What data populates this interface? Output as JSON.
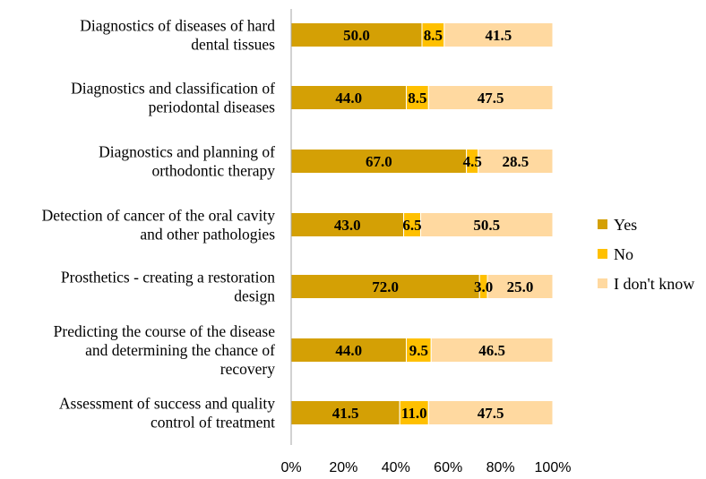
{
  "chart_data": {
    "type": "bar",
    "orientation": "horizontal",
    "stacked": "percent",
    "categories": [
      [
        "Diagnostics of diseases of hard",
        "dental tissues"
      ],
      [
        "Diagnostics and classification of",
        "periodontal diseases"
      ],
      [
        "Diagnostics and planning of",
        "orthodontic therapy"
      ],
      [
        "Detection of cancer of the oral cavity",
        "and other pathologies"
      ],
      [
        "Prosthetics - creating a restoration",
        "design"
      ],
      [
        "Predicting the course of the disease",
        "and determining the chance of",
        "recovery"
      ],
      [
        "Assessment of success and quality",
        "control of treatment"
      ]
    ],
    "series": [
      {
        "name": "Yes",
        "color": "#D4A005",
        "values": [
          50.0,
          44.0,
          67.0,
          43.0,
          72.0,
          44.0,
          41.5
        ]
      },
      {
        "name": "No",
        "color": "#FFC000",
        "values": [
          8.5,
          8.5,
          4.5,
          6.5,
          3.0,
          9.5,
          11.0
        ]
      },
      {
        "name": "I don't know",
        "color": "#FFD9A0",
        "values": [
          41.5,
          47.5,
          28.5,
          50.5,
          25.0,
          46.5,
          47.5
        ]
      }
    ],
    "value_labels": [
      [
        "50.0",
        "44.0",
        "67.0",
        "43.0",
        "72.0",
        "44.0",
        "41.5"
      ],
      [
        "8.5",
        "8.5",
        "4.5",
        "6.5",
        "3.0",
        "9.5",
        "11.0"
      ],
      [
        "41.5",
        "47.5",
        "28.5",
        "50.5",
        "25.0",
        "46.5",
        "47.5"
      ]
    ],
    "xlim": [
      0,
      100
    ],
    "x_ticks": [
      "0%",
      "20%",
      "40%",
      "60%",
      "80%",
      "100%"
    ],
    "grid": false,
    "legend_position": "right"
  }
}
